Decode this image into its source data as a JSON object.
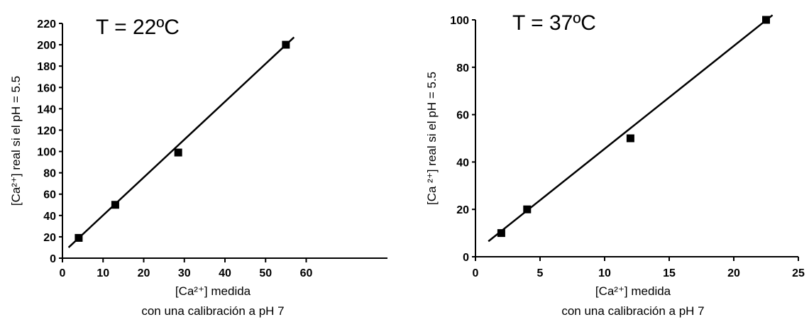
{
  "chart_data": [
    {
      "type": "scatter",
      "title": "T = 22ºC",
      "xlabel": [
        "[Ca²⁺] medida",
        "con una calibración a pH 7"
      ],
      "ylabel": "[Ca²⁺] real si el pH = 5.5",
      "xlim": [
        0,
        80
      ],
      "ylim": [
        0,
        220
      ],
      "xticks": [
        "0",
        "10",
        "20",
        "30",
        "40",
        "50",
        "60"
      ],
      "xticks_values": [
        0,
        10,
        20,
        30,
        40,
        50,
        60
      ],
      "yticks": [
        "0",
        "20",
        "40",
        "60",
        "80",
        "100",
        "120",
        "140",
        "160",
        "180",
        "200",
        "220"
      ],
      "yticks_values": [
        0,
        20,
        40,
        60,
        80,
        100,
        120,
        140,
        160,
        180,
        200,
        220
      ],
      "points": {
        "x": [
          4,
          13,
          28.5,
          55
        ],
        "y": [
          19,
          50,
          99,
          200
        ]
      },
      "fit_line": {
        "x": [
          1.5,
          57
        ],
        "y": [
          10,
          207
        ]
      },
      "grid": false
    },
    {
      "type": "scatter",
      "title": "T = 37ºC",
      "xlabel": [
        "[Ca²⁺] medida",
        "con una calibración a pH 7"
      ],
      "ylabel": "[Ca ²⁺] real si el pH = 5.5",
      "xlim": [
        0,
        25
      ],
      "ylim": [
        0,
        100
      ],
      "xticks": [
        "0",
        "5",
        "10",
        "15",
        "20",
        "25"
      ],
      "xticks_values": [
        0,
        5,
        10,
        15,
        20,
        25
      ],
      "yticks": [
        "0",
        "20",
        "40",
        "60",
        "80",
        "100"
      ],
      "yticks_values": [
        0,
        20,
        40,
        60,
        80,
        100
      ],
      "points": {
        "x": [
          2,
          4,
          12,
          22.5
        ],
        "y": [
          10,
          20,
          50,
          100
        ]
      },
      "fit_line": {
        "x": [
          1,
          23
        ],
        "y": [
          6.5,
          102
        ]
      },
      "grid": false
    }
  ]
}
